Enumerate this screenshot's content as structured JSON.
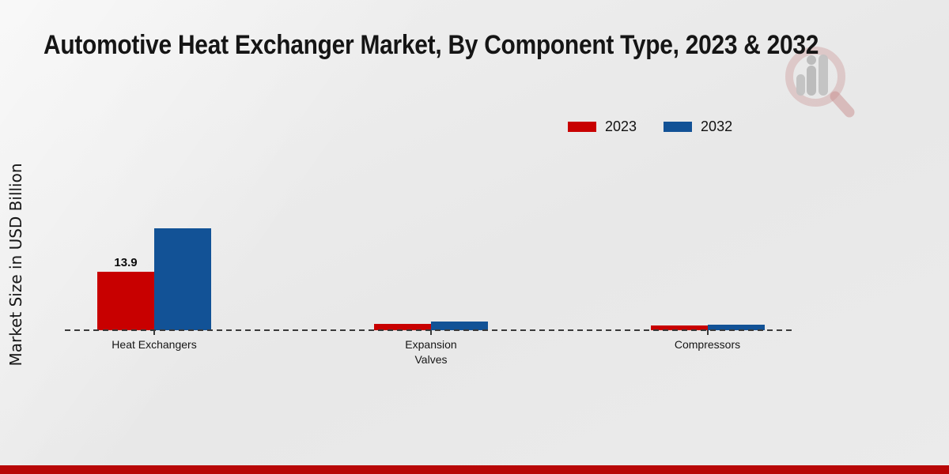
{
  "title": "Automotive Heat Exchanger Market, By Component Type, 2023 & 2032",
  "chart_data": {
    "type": "bar",
    "categories": [
      "Heat Exchangers",
      "Expansion Valves",
      "Compressors"
    ],
    "series": [
      {
        "name": "2023",
        "color": "#c80000",
        "values": [
          13.9,
          1.5,
          1.1
        ],
        "value_labels": [
          "13.9",
          "",
          ""
        ]
      },
      {
        "name": "2032",
        "color": "#125296",
        "values": [
          24.2,
          2.0,
          1.4
        ],
        "value_labels": [
          "",
          "",
          ""
        ]
      }
    ],
    "title": "Automotive Heat Exchanger Market, By Component Type, 2023 & 2032",
    "xlabel": "",
    "ylabel": "Market Size in USD Billion",
    "ylim": [
      0,
      25
    ],
    "grid": false,
    "y_ticks_visible": false,
    "legend_position": "top-right",
    "zero_line_style": "dashed"
  },
  "colors": {
    "bar_2023": "#c80000",
    "bar_2032": "#125296",
    "baseline": "#3a3a3a",
    "footer_band": "#b80707",
    "background": "#e9e9e9",
    "text": "#141414"
  },
  "watermark": {
    "icon_name": "magnifier-bar-chart-logo"
  }
}
